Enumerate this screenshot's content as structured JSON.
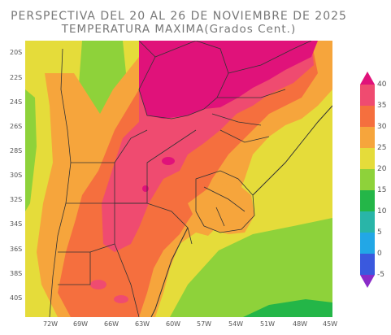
{
  "title": {
    "line1": "PERSPECTIVA DEL 20 AL 26 DE NOVIEMBRE DE 2025",
    "line2": "TEMPERATURA MAXIMA(Grados Cent.)"
  },
  "axes": {
    "lat_labels": [
      "20S",
      "22S",
      "24S",
      "26S",
      "28S",
      "30S",
      "32S",
      "34S",
      "36S",
      "38S",
      "40S"
    ],
    "lon_labels": [
      "72W",
      "69W",
      "66W",
      "63W",
      "60W",
      "57W",
      "54W",
      "51W",
      "48W",
      "45W"
    ]
  },
  "legend": {
    "labels": [
      "40",
      "35",
      "30",
      "25",
      "20",
      "15",
      "10",
      "5",
      "0",
      "-5"
    ],
    "colors": {
      "above_40": "#e0127a",
      "35_40": "#ef4b70",
      "30_35": "#f56f3e",
      "25_30": "#f6a53c",
      "20_25": "#e5dc3a",
      "15_20": "#8ed23a",
      "10_15": "#24b648",
      "5_10": "#29b5a8",
      "0_5": "#22a7e6",
      "-5_0": "#3a59de",
      "below_-5": "#8a2bc8"
    }
  },
  "map": {
    "ocean_color": "#e5dc3a",
    "boundary_color": "#333333"
  }
}
